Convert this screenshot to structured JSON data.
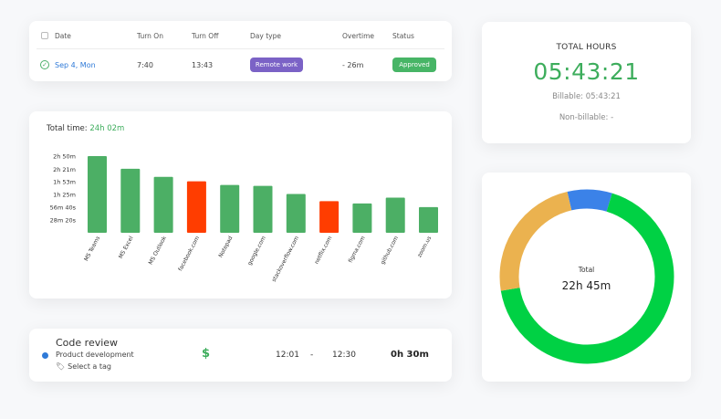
{
  "table": {
    "headers": {
      "date": "Date",
      "turn_on": "Turn On",
      "turn_off": "Turn Off",
      "day_type": "Day type",
      "overtime": "Overtime",
      "status": "Status"
    },
    "row": {
      "date": "Sep 4, Mon",
      "turn_on": "7:40",
      "turn_off": "13:43",
      "day_type": "Remote work",
      "overtime": "- 26m",
      "status": "Approved"
    }
  },
  "hours": {
    "title": "TOTAL HOURS",
    "value": "05:43:21",
    "billable": "Billable: 05:43:21",
    "non_billable": "Non-billable: -"
  },
  "chart_data": {
    "type": "bar",
    "title_prefix": "Total time:",
    "title_value": "24h 02m",
    "categories": [
      "MS Teams",
      "MS Excel",
      "MS Outlook",
      "facebook.com",
      "Notepad",
      "google.com",
      "stackoverflow.com",
      "netflix.com",
      "figma.com",
      "github.com",
      "zoom.us"
    ],
    "values": [
      170,
      142,
      124,
      114,
      106,
      104,
      86,
      70,
      65,
      78,
      57
    ],
    "value_unit": "minutes",
    "colors": [
      "#4caf65",
      "#4caf65",
      "#4caf65",
      "#ff3d00",
      "#4caf65",
      "#4caf65",
      "#4caf65",
      "#ff3d00",
      "#4caf65",
      "#4caf65",
      "#4caf65"
    ],
    "y_ticks": [
      {
        "label": "2h 50m",
        "value": 170
      },
      {
        "label": "2h 21m",
        "value": 141
      },
      {
        "label": "1h 53m",
        "value": 113
      },
      {
        "label": "1h 25m",
        "value": 85
      },
      {
        "label": "56m 40s",
        "value": 56.67
      },
      {
        "label": "28m 20s",
        "value": 28.33
      }
    ],
    "ylim": [
      0,
      170
    ],
    "grid": false
  },
  "entry": {
    "title": "Code review",
    "project": "Product development",
    "tag_placeholder": "Select a tag",
    "tag_icon": "tag-icon",
    "billable_icon": "dollar-icon",
    "start": "12:01",
    "separator": "-",
    "end": "12:30",
    "duration": "0h 30m",
    "dot_color": "#2f7ad8"
  },
  "donut": {
    "label": "Total",
    "value": "22h 45m",
    "segments": [
      {
        "value": 8.3,
        "color": "#3b82e8"
      },
      {
        "value": 67.7,
        "color": "#00d144"
      },
      {
        "value": 24.0,
        "color": "#ebb24f"
      }
    ]
  }
}
